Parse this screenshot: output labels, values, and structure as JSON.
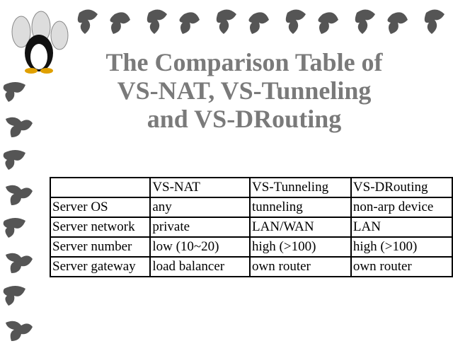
{
  "title": {
    "lines": [
      "The Comparison Table of",
      "VS-NAT, VS-Tunneling",
      "and VS-DRouting"
    ]
  },
  "table": {
    "header": [
      "VS-NAT",
      "VS-Tunneling",
      "VS-DRouting"
    ],
    "rows": [
      [
        "Server OS",
        "any",
        "tunneling",
        "non-arp device"
      ],
      [
        "Server network",
        "private",
        "LAN/WAN",
        "LAN"
      ],
      [
        "Server number",
        "low (10~20)",
        "high (>100)",
        "high (>100)"
      ],
      [
        "Server gateway",
        "load balancer",
        "own router",
        "own router"
      ]
    ]
  }
}
